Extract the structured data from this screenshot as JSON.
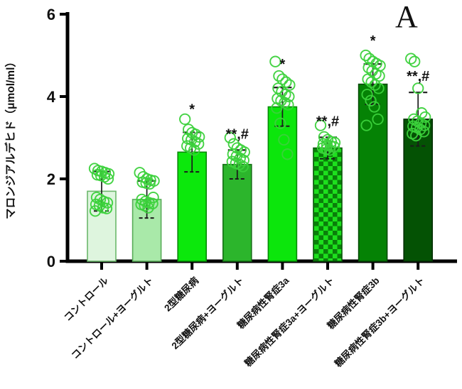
{
  "panel_label": "A",
  "chart_data": {
    "type": "bar",
    "title": "",
    "ylabel": "マロンジアルデヒド（μmol/ml）",
    "xlabel": "",
    "ylim": [
      0,
      6
    ],
    "yticks": [
      0,
      2,
      4,
      6
    ],
    "grid": false,
    "legend": "none",
    "categories": [
      "コントロール",
      "コントロール+ヨーグルト",
      "2型糖尿病",
      "2型糖尿病+ヨーグルト",
      "糖尿病性腎症3a",
      "糖尿病性腎症3a+ヨーグルト",
      "糖尿病性腎症3b",
      "糖尿病性腎症3b+ヨーグルト"
    ],
    "values": [
      1.7,
      1.5,
      2.65,
      2.35,
      3.75,
      2.75,
      4.3,
      3.45
    ],
    "sd": [
      0.48,
      0.45,
      0.48,
      0.35,
      0.47,
      0.26,
      0.49,
      0.65
    ],
    "significance": [
      "",
      "",
      "*",
      "**,#",
      "*",
      "**,#",
      "*",
      "**,#"
    ],
    "scatter_points": [
      [
        2.25,
        2.2,
        2.18,
        2.15,
        2.12,
        2.1,
        2.08,
        2.05,
        2.0,
        1.55,
        1.5,
        1.45,
        1.42,
        1.38,
        1.35,
        1.3,
        1.28,
        1.22
      ],
      [
        2.15,
        2.05,
        2.0,
        1.97,
        1.95,
        1.92,
        1.9,
        1.88,
        1.55,
        1.5,
        1.45,
        1.42,
        1.4,
        1.38,
        1.35,
        1.3
      ],
      [
        3.45,
        3.2,
        3.12,
        3.08,
        3.02,
        2.98,
        2.95,
        2.9,
        2.85,
        2.8,
        2.75,
        2.7
      ],
      [
        3.0,
        2.85,
        2.75,
        2.7,
        2.65,
        2.6,
        2.55,
        2.5,
        2.45,
        2.42,
        2.38,
        2.35,
        2.3
      ],
      [
        4.85,
        4.5,
        4.42,
        4.35,
        4.28,
        4.2,
        4.12,
        4.05,
        4.0,
        3.95,
        3.9,
        3.85,
        3.8,
        3.72,
        3.35,
        2.95,
        2.6
      ],
      [
        3.3,
        3.02,
        2.95,
        2.9,
        2.88,
        2.85,
        2.82,
        2.8,
        2.78,
        2.75,
        2.72,
        2.7
      ],
      [
        5.0,
        4.92,
        4.85,
        4.8,
        4.75,
        4.7,
        4.62,
        4.55,
        4.5,
        4.42,
        4.35,
        4.28,
        4.2,
        4.05,
        3.9,
        3.75,
        3.45,
        3.3
      ],
      [
        4.92,
        4.85,
        4.2,
        3.6,
        3.5,
        3.45,
        3.4,
        3.35,
        3.3,
        3.28,
        3.25,
        3.2,
        3.15,
        3.1,
        3.05
      ]
    ],
    "bar_styles": [
      {
        "fill": "#def5de",
        "stroke": "#6cb86c"
      },
      {
        "fill": "#a9e9a9",
        "stroke": "#58ab58"
      },
      {
        "fill": "#0ce80c",
        "stroke": "#078a07"
      },
      {
        "fill": "#2cb52c",
        "stroke": "#167016"
      },
      {
        "fill": "#0ce60c",
        "stroke": "#078a07"
      },
      {
        "fill": "checker",
        "checker_light": "#1de01d",
        "checker_dark": "#0a7e0a",
        "stroke": "#075607"
      },
      {
        "fill": "#058205",
        "stroke": "#034a03"
      },
      {
        "fill": "#045204",
        "stroke": "#022e02"
      }
    ],
    "point_color": "#3bd13b",
    "error_color": "#1b1b1b",
    "axis_color": "#000000",
    "text_color": "#111111"
  }
}
